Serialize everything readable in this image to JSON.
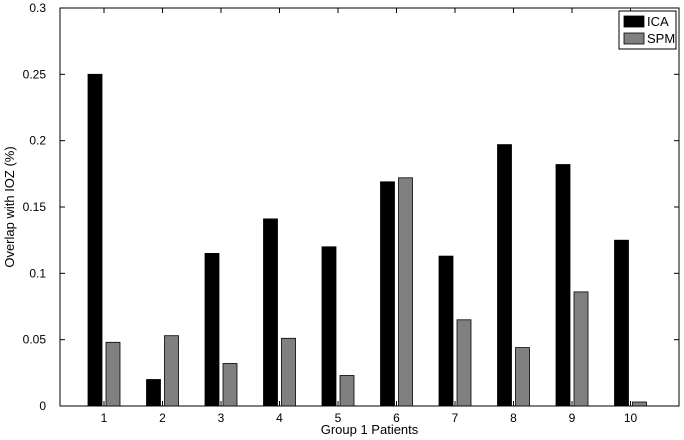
{
  "chart_data": {
    "type": "bar",
    "title": "",
    "xlabel": "Group 1 Patients",
    "ylabel": "Overlap with IOZ (%)",
    "categories": [
      "1",
      "2",
      "3",
      "4",
      "5",
      "6",
      "7",
      "8",
      "9",
      "10"
    ],
    "series": [
      {
        "name": "ICA",
        "color": "#000000",
        "values": [
          0.25,
          0.02,
          0.115,
          0.141,
          0.12,
          0.169,
          0.113,
          0.197,
          0.182,
          0.125
        ]
      },
      {
        "name": "SPM",
        "color": "#808080",
        "values": [
          0.048,
          0.053,
          0.032,
          0.051,
          0.023,
          0.172,
          0.065,
          0.044,
          0.086,
          0.003
        ]
      }
    ],
    "ylim": [
      0,
      0.3
    ],
    "yticks": [
      "0",
      "0.05",
      "0.1",
      "0.15",
      "0.2",
      "0.25",
      "0.3"
    ],
    "grid": false,
    "legend_position": "top-right"
  }
}
